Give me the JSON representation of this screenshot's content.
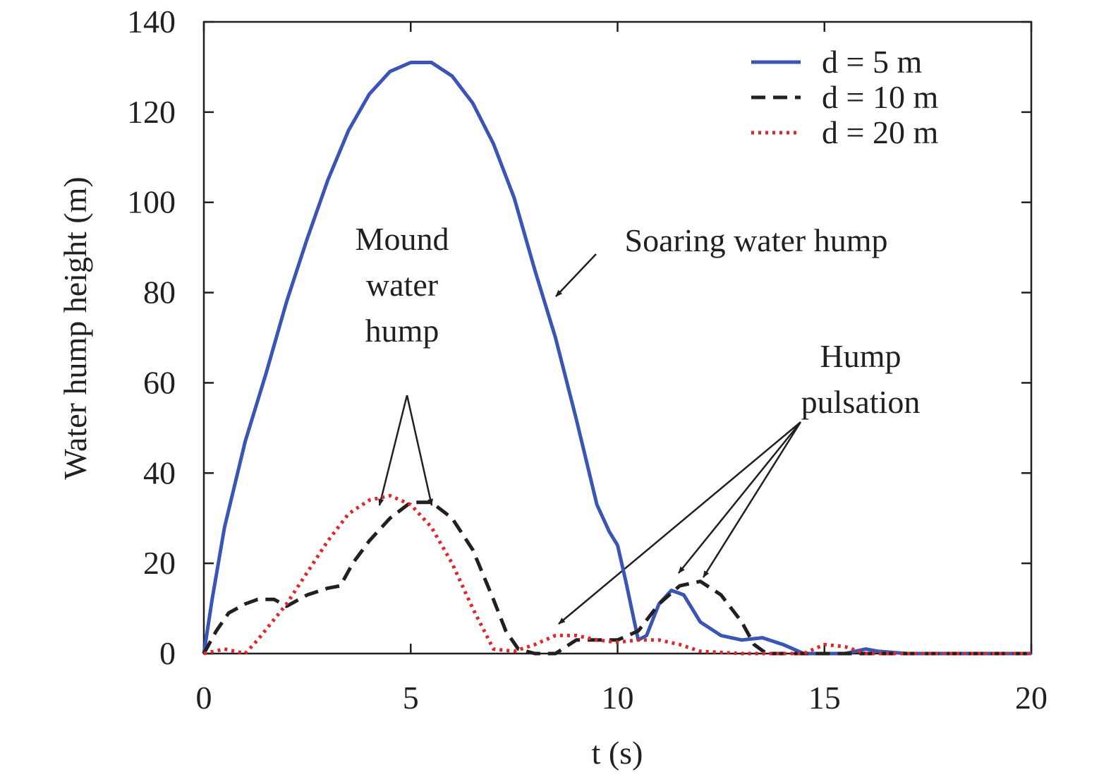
{
  "chart_data": {
    "type": "line",
    "xlabel": "t (s)",
    "ylabel": "Water hump height (m)",
    "xlim": [
      0,
      20
    ],
    "ylim": [
      0,
      140
    ],
    "xticks": [
      0,
      5,
      10,
      15,
      20
    ],
    "yticks": [
      0,
      20,
      40,
      60,
      80,
      100,
      120,
      140
    ],
    "grid": false,
    "legend": "upper right",
    "series": [
      {
        "name": "d = 5 m",
        "color": "#3a55b4",
        "style": "solid",
        "x": [
          0,
          0.2,
          0.5,
          1,
          1.5,
          2,
          2.5,
          3,
          3.5,
          4,
          4.5,
          5,
          5.5,
          6,
          6.5,
          7,
          7.5,
          8,
          8.5,
          9,
          9.5,
          9.8,
          10,
          10.2,
          10.5,
          10.7,
          11,
          11.3,
          11.6,
          12,
          12.5,
          13,
          13.5,
          14,
          14.5,
          15,
          15.5,
          16,
          16.3,
          17,
          18,
          19,
          20
        ],
        "values": [
          0,
          12,
          28,
          47,
          62,
          78,
          92,
          105,
          116,
          124,
          129,
          131,
          131,
          128,
          122,
          113,
          101,
          85,
          70,
          52,
          33,
          27,
          24,
          16,
          3,
          4,
          11,
          14,
          13,
          7,
          4,
          3,
          3.5,
          2,
          0,
          0,
          0,
          1,
          0.5,
          0,
          0,
          0,
          0
        ]
      },
      {
        "name": "d = 10 m",
        "color": "#231f20",
        "style": "dashed",
        "x": [
          0,
          0.3,
          0.6,
          1,
          1.3,
          1.7,
          2,
          2.5,
          3,
          3.3,
          3.6,
          4,
          4.5,
          5,
          5.5,
          6,
          6.5,
          7,
          7.3,
          7.6,
          8,
          8.5,
          9,
          9.5,
          10,
          10.5,
          11,
          11.5,
          12,
          12.5,
          13,
          13.3,
          13.6,
          14,
          15,
          16,
          17,
          20
        ],
        "values": [
          0,
          5,
          9,
          11,
          12,
          12,
          10.5,
          13,
          14.5,
          15,
          20,
          25,
          30,
          33.5,
          33.5,
          30,
          23,
          12,
          5,
          1,
          0,
          0,
          3,
          3,
          3,
          5,
          11,
          15,
          16,
          13,
          7,
          2,
          0,
          0,
          0,
          0,
          0,
          0
        ]
      },
      {
        "name": "d = 20 m",
        "color": "#e0262b",
        "style": "dotted",
        "x": [
          0,
          0.5,
          1,
          1.3,
          2,
          2.5,
          3,
          3.5,
          4,
          4.5,
          5,
          5.5,
          6,
          6.5,
          7,
          7.5,
          8,
          8.5,
          9,
          9.5,
          10,
          10.5,
          11,
          11.5,
          12,
          13,
          14,
          14.5,
          15,
          15.5,
          16,
          17,
          20
        ],
        "values": [
          0,
          1,
          0,
          3,
          11,
          18,
          25,
          31,
          34,
          35,
          33,
          28,
          20,
          10,
          1,
          0.5,
          2,
          4,
          4,
          3,
          2.5,
          3,
          3,
          2,
          0.5,
          0,
          0,
          0,
          2,
          1.5,
          0,
          0,
          0
        ]
      }
    ],
    "annotations": [
      {
        "lines": [
          "Soaring water hump"
        ]
      },
      {
        "lines": [
          "Mound",
          "water",
          "hump"
        ]
      },
      {
        "lines": [
          "Hump",
          "pulsation"
        ]
      }
    ]
  }
}
